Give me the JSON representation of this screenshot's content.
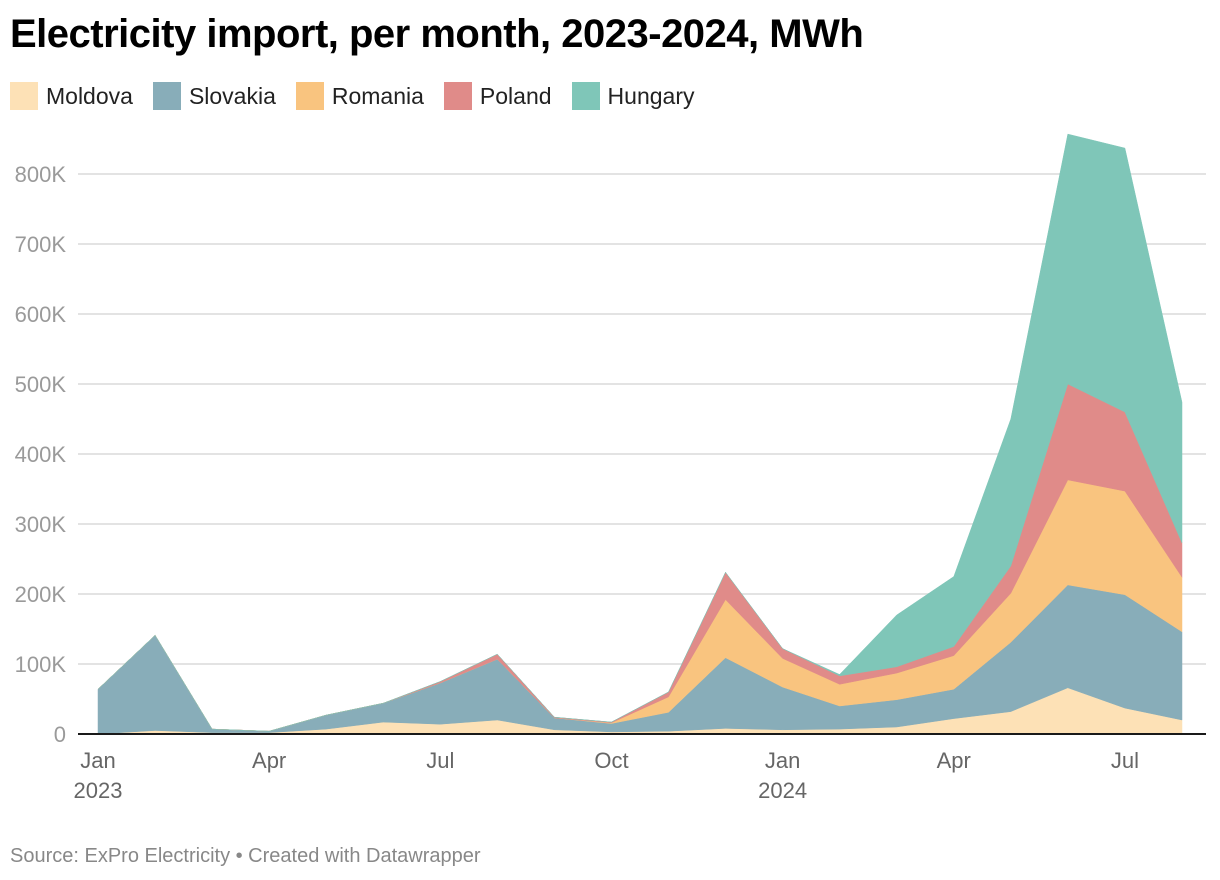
{
  "chart_data": {
    "type": "area",
    "stacked": true,
    "title": "Electricity import, per month, 2023-2024, MWh",
    "xlabel": "",
    "ylabel": "",
    "ylim": [
      0,
      860000
    ],
    "grid": true,
    "legend_position": "top-left",
    "x": [
      "Jan 2023",
      "Feb 2023",
      "Mar 2023",
      "Apr 2023",
      "May 2023",
      "Jun 2023",
      "Jul 2023",
      "Aug 2023",
      "Sep 2023",
      "Oct 2023",
      "Nov 2023",
      "Dec 2023",
      "Jan 2024",
      "Feb 2024",
      "Mar 2024",
      "Apr 2024",
      "May 2024",
      "Jun 2024",
      "Jul 2024",
      "Aug 2024"
    ],
    "series": [
      {
        "name": "Moldova",
        "color": "#fde1b6",
        "values": [
          0,
          5000,
          2000,
          2000,
          7000,
          17000,
          14000,
          20000,
          6000,
          3000,
          4000,
          8000,
          6000,
          7000,
          10000,
          22000,
          32000,
          66000,
          37000,
          20000
        ]
      },
      {
        "name": "Slovakia",
        "color": "#88adb9",
        "values": [
          64000,
          136000,
          5000,
          2000,
          20000,
          27000,
          59000,
          87000,
          17000,
          12000,
          27000,
          101000,
          61000,
          33000,
          39000,
          42000,
          99000,
          147000,
          162000,
          126000
        ]
      },
      {
        "name": "Romania",
        "color": "#f9c47f",
        "values": [
          0,
          0,
          0,
          0,
          0,
          0,
          0,
          0,
          0,
          1000,
          22000,
          83000,
          41000,
          31000,
          38000,
          48000,
          70000,
          150000,
          148000,
          78000
        ]
      },
      {
        "name": "Poland",
        "color": "#e08b89",
        "values": [
          0,
          0,
          0,
          0,
          0,
          0,
          2000,
          7000,
          1000,
          1000,
          7000,
          39000,
          14000,
          12000,
          9000,
          13000,
          39000,
          137000,
          113000,
          49000
        ]
      },
      {
        "name": "Hungary",
        "color": "#7fc6b8",
        "values": [
          0,
          0,
          0,
          0,
          0,
          0,
          0,
          0,
          0,
          0,
          0,
          0,
          0,
          2000,
          74000,
          100000,
          210000,
          357000,
          377000,
          201000
        ]
      }
    ],
    "y_ticks": [
      {
        "value": 0,
        "label": "0"
      },
      {
        "value": 100000,
        "label": "100K"
      },
      {
        "value": 200000,
        "label": "200K"
      },
      {
        "value": 300000,
        "label": "300K"
      },
      {
        "value": 400000,
        "label": "400K"
      },
      {
        "value": 500000,
        "label": "500K"
      },
      {
        "value": 600000,
        "label": "600K"
      },
      {
        "value": 700000,
        "label": "700K"
      },
      {
        "value": 800000,
        "label": "800K"
      }
    ],
    "x_ticks": [
      {
        "index": 0,
        "label": "Jan",
        "sublabel": "2023"
      },
      {
        "index": 3,
        "label": "Apr",
        "sublabel": ""
      },
      {
        "index": 6,
        "label": "Jul",
        "sublabel": ""
      },
      {
        "index": 9,
        "label": "Oct",
        "sublabel": ""
      },
      {
        "index": 12,
        "label": "Jan",
        "sublabel": "2024"
      },
      {
        "index": 15,
        "label": "Apr",
        "sublabel": ""
      },
      {
        "index": 18,
        "label": "Jul",
        "sublabel": ""
      }
    ],
    "source": "Source: ExPro Electricity • Created with Datawrapper"
  },
  "legend": [
    {
      "label": "Moldova",
      "color": "#fde1b6"
    },
    {
      "label": "Slovakia",
      "color": "#88adb9"
    },
    {
      "label": "Romania",
      "color": "#f9c47f"
    },
    {
      "label": "Poland",
      "color": "#e08b89"
    },
    {
      "label": "Hungary",
      "color": "#7fc6b8"
    }
  ]
}
